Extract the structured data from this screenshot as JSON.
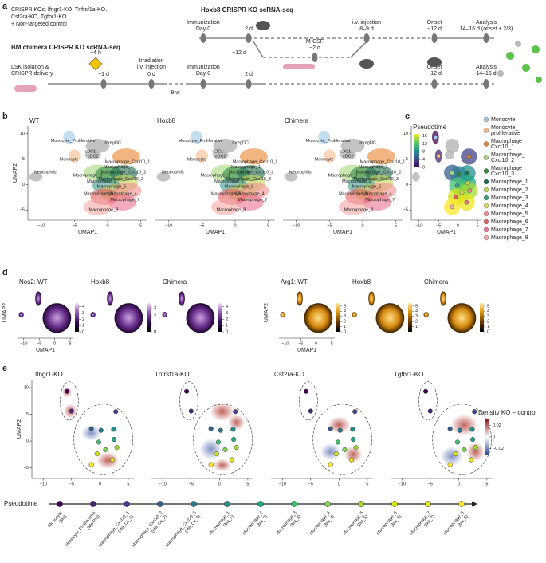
{
  "panel_labels": {
    "a": "a",
    "b": "b",
    "c": "c",
    "d": "d",
    "e": "e"
  },
  "panel_a": {
    "ko_text": [
      "CRISPR KOs: Ifngr1-KO, Tnfrsf1a-KO,",
      "Csf2ra-KO, Tgfbr1-KO",
      "+ Non-targeted control"
    ],
    "hoxb8_title": "Hoxb8 CRISPR KO scRNA-seq",
    "chimera_title": "BM chimera CRISPR KO scRNA-seq",
    "hoxb8_steps": [
      [
        "Immunization",
        "Day 0"
      ],
      [
        "2 d"
      ],
      [
        "M-CSF",
        "~2 d"
      ],
      [
        "i.v. injection",
        "8–9 d"
      ],
      [
        "Onset",
        "~12 d"
      ],
      [
        "Analysis",
        "14–16 d (onset + 2/3)"
      ]
    ],
    "hoxb8_culture": "~12 d",
    "chimera_steps": [
      [
        "LSK isolation &",
        "CRISPR delivery"
      ],
      [
        "~1 d"
      ],
      [
        "~4 h"
      ],
      [
        "Irradiation",
        "i.v. injection"
      ],
      [
        "0 d"
      ],
      [
        "Immunization",
        "Day 0"
      ],
      [
        "2 d"
      ],
      [
        "Onset",
        "~12 d"
      ],
      [
        "Analysis",
        "14–16 d"
      ]
    ],
    "chimera_gap": "8 w"
  },
  "umap": {
    "x_label": "UMAP1",
    "y_label": "UMAP2",
    "xlim": [
      -12,
      6
    ],
    "ylim": [
      -7,
      11.5
    ],
    "xticks": [
      {
        "value": -10,
        "label": "−10"
      },
      {
        "value": -5,
        "label": "−5"
      },
      0,
      5
    ],
    "yticks": [
      {
        "value": -5,
        "label": "−5"
      },
      0,
      5,
      10
    ]
  },
  "panel_b": {
    "titles": [
      "WT",
      "Hoxb8",
      "Chimera"
    ],
    "labels": [
      "Monocyte_Proliferative",
      "mregDC",
      "cDC1",
      "cDC2",
      "Monocyte",
      "Macrophage_Cxcl10_1",
      "Macrophage_1",
      "Macrophage_Cxcl10_2",
      "Macrophage_3",
      "Macrophage_Cxcl10_3",
      "Macrophage_2",
      "Macrophage_5",
      "Macrophage_6",
      "Macrophage_4",
      "Macrophage_7",
      "Macrophage_8",
      "Neutrophils"
    ]
  },
  "clusters": {
    "legend": [
      [
        "Monocyte"
      ],
      [
        "Monocyte_",
        "proliferative"
      ],
      [
        "Macrophage_",
        "Cxcl10_1"
      ],
      [
        "Macrophage_",
        "Cxcl10_2"
      ],
      [
        "Macrophage_",
        "Cxcl10_3"
      ],
      [
        "Macrophage_1"
      ],
      [
        "Macrophage_2"
      ],
      [
        "Macrophage_3"
      ],
      [
        "Macrophage_4"
      ],
      [
        "Macrophage_5"
      ],
      [
        "Macrophage_6"
      ],
      [
        "Macrophage_7"
      ],
      [
        "Macrophage_8"
      ]
    ],
    "colors": [
      "#9cc8e6",
      "#f5b98a",
      "#e9822b",
      "#a6d77c",
      "#2e8b3e",
      "#1e6e4e",
      "#c6d35c",
      "#3f9a8c",
      "#d9d760",
      "#f08f8f",
      "#e45b5b",
      "#e9718f",
      "#f3a6a6"
    ],
    "centroid_x": [
      -5.8,
      -5.0,
      2.8,
      -1.5,
      0.2,
      2.4,
      2.5,
      -0.2,
      1.0,
      3.0,
      -0.5,
      2.2,
      -1.5
    ],
    "centroid_y": [
      9.3,
      5.6,
      5.5,
      2.3,
      2.0,
      2.2,
      0.3,
      -0.2,
      -1.6,
      -1.2,
      -2.4,
      -3.5,
      -4.4
    ],
    "pseudotime_colors": [
      "#440154",
      "#482475",
      "#414487",
      "#355f8d",
      "#2a788e",
      "#21908d",
      "#22a884",
      "#42be71",
      "#7ad151",
      "#a5db36",
      "#d2e21b",
      "#e8e419",
      "#fde725"
    ],
    "pseudotime_labels": [
      [
        "Monocyte",
        "(Mo)"
      ],
      [
        "Monocyte_Proliferative",
        "(Mo-Pro)"
      ],
      [
        "Macrophage_Cxcl10_1",
        "(Ma_Cx_1)"
      ],
      [
        "Macrophage_Cxcl10_2",
        "(Ma_Cx_2)"
      ],
      [
        "Macrophage_Cxcl10_3",
        "(Ma_Cx_3)"
      ],
      [
        "Macrophage_1",
        "(Ma_1)"
      ],
      [
        "Macrophage_2",
        "(Ma_2)"
      ],
      [
        "Macrophage_3",
        "(Ma_3)"
      ],
      [
        "Macrophage_4",
        "(Ma_4)"
      ],
      [
        "Macrophage_5",
        "(Ma_5)"
      ],
      [
        "Macrophage_6",
        "(Ma_6)"
      ],
      [
        "Macrophage_7",
        "(Ma_7)"
      ],
      [
        "Macrophage_8",
        "(Ma_8)"
      ]
    ]
  },
  "panel_c": {
    "title": "Pseudotime",
    "cbar_lim": [
      0,
      17
    ],
    "cbar_ticks": [
      0,
      4,
      8,
      12,
      16
    ]
  },
  "panel_d": {
    "panels": [
      {
        "title": "Nos2: WT",
        "lim": [
          0,
          4.6
        ],
        "ticks": [
          0,
          1,
          2,
          3,
          4
        ],
        "palette": "purple"
      },
      {
        "title": "Hoxb8",
        "lim": [
          0,
          3.6
        ],
        "ticks": [
          0,
          1,
          2,
          3
        ],
        "palette": "purple"
      },
      {
        "title": "Chimera",
        "lim": [
          0,
          4.6
        ],
        "ticks": [
          0,
          1,
          2,
          3,
          4
        ],
        "palette": "purple"
      },
      {
        "title": "Arg1: WT",
        "lim": [
          0,
          5.6
        ],
        "ticks": [
          0,
          1,
          2,
          3,
          4,
          5
        ],
        "palette": "orange"
      },
      {
        "title": "Hoxb8",
        "lim": [
          0,
          5.6
        ],
        "ticks": [
          1,
          2,
          3,
          4,
          5
        ],
        "palette": "orange"
      },
      {
        "title": "Chimera",
        "lim": [
          0,
          5.6
        ],
        "ticks": [
          0,
          1,
          2,
          3,
          4,
          5
        ],
        "palette": "orange"
      }
    ]
  },
  "panel_e": {
    "titles": [
      "Ifngr1-KO",
      "Tnfrsf1a-KO",
      "Csf2ra-KO",
      "Tgfbr1-KO"
    ],
    "cbar_title": "Density KO – control",
    "cbar_lim": [
      -0.03,
      0.03
    ],
    "cbar_ticks": [
      0.02,
      0,
      {
        "value": -0.02,
        "label": "−0.02"
      }
    ]
  },
  "pseudotime_axis": {
    "title": "Pseudotime"
  }
}
